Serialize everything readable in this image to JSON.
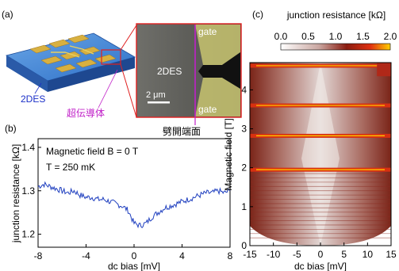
{
  "panel_a": {
    "label": "(a)",
    "device_label": "2DES",
    "superconductor_label": "超伝導体",
    "micrograph": {
      "region_label": "2DES",
      "gate_top": "gate",
      "gate_bottom": "gate",
      "scale_bar": "2 μm",
      "cleaved_facet_label": "劈開端面"
    }
  },
  "panel_b": {
    "label": "(b)",
    "annotation_field": "Magnetic field B = 0 T",
    "annotation_temp": "T = 250 mK",
    "xlabel": "dc bias [mV]",
    "ylabel": "junction resistance [kΩ]",
    "xticks": [
      "-8",
      "-4",
      "0",
      "4",
      "8"
    ],
    "yticks": [
      "1.2",
      "1.3",
      "1.4"
    ]
  },
  "panel_c": {
    "label": "(c)",
    "colorbar_title": "junction resistance [kΩ]",
    "colorbar_ticks": [
      "0.0",
      "0.5",
      "1.0",
      "1.5",
      "2.0"
    ],
    "xlabel": "dc bias [mV]",
    "ylabel": "Magnetic field [T]",
    "xticks": [
      "-15",
      "-10",
      "-5",
      "0",
      "5",
      "10",
      "15"
    ],
    "yticks": [
      "0",
      "1",
      "2",
      "3",
      "4"
    ]
  },
  "colors": {
    "line": "#1f3fbf",
    "label_blue": "#1a2fc8",
    "label_magenta": "#c020c8",
    "gate_yellow": "#d8d060",
    "heat_low": "#ffffff",
    "heat_mid": "#a02010",
    "heat_high": "#ffd000"
  },
  "chart_data": [
    {
      "type": "line",
      "title": "",
      "xlabel": "dc bias [mV]",
      "ylabel": "junction resistance [kΩ]",
      "xlim": [
        -8,
        8
      ],
      "ylim": [
        1.17,
        1.42
      ],
      "grid": false,
      "series": [
        {
          "x": [
            -8,
            -7.5,
            -7,
            -6.5,
            -6,
            -5.5,
            -5,
            -4.5,
            -4,
            -3.5,
            -3,
            -2.5,
            -2,
            -1.5,
            -1,
            -0.5,
            0,
            0.5,
            1,
            1.5,
            2,
            2.5,
            3,
            3.5,
            4,
            4.5,
            5,
            5.5,
            6,
            6.5,
            7,
            7.5,
            8
          ],
          "y": [
            1.31,
            1.315,
            1.31,
            1.305,
            1.3,
            1.295,
            1.3,
            1.29,
            1.285,
            1.285,
            1.28,
            1.28,
            1.275,
            1.27,
            1.265,
            1.255,
            1.225,
            1.22,
            1.225,
            1.24,
            1.25,
            1.26,
            1.265,
            1.27,
            1.275,
            1.28,
            1.285,
            1.29,
            1.295,
            1.295,
            1.3,
            1.295,
            1.3
          ]
        }
      ]
    },
    {
      "type": "heatmap",
      "title": "",
      "xlabel": "dc bias [mV]",
      "ylabel": "Magnetic field [T]",
      "xlim": [
        -15,
        15
      ],
      "ylim": [
        0,
        4.7
      ],
      "colorbar": {
        "label": "junction resistance [kΩ]",
        "range": [
          0,
          2.0
        ]
      },
      "high_resistance_field_bands_T": [
        1.95,
        2.82,
        3.6,
        4.62
      ],
      "color_scale": "white-red-yellow"
    }
  ]
}
